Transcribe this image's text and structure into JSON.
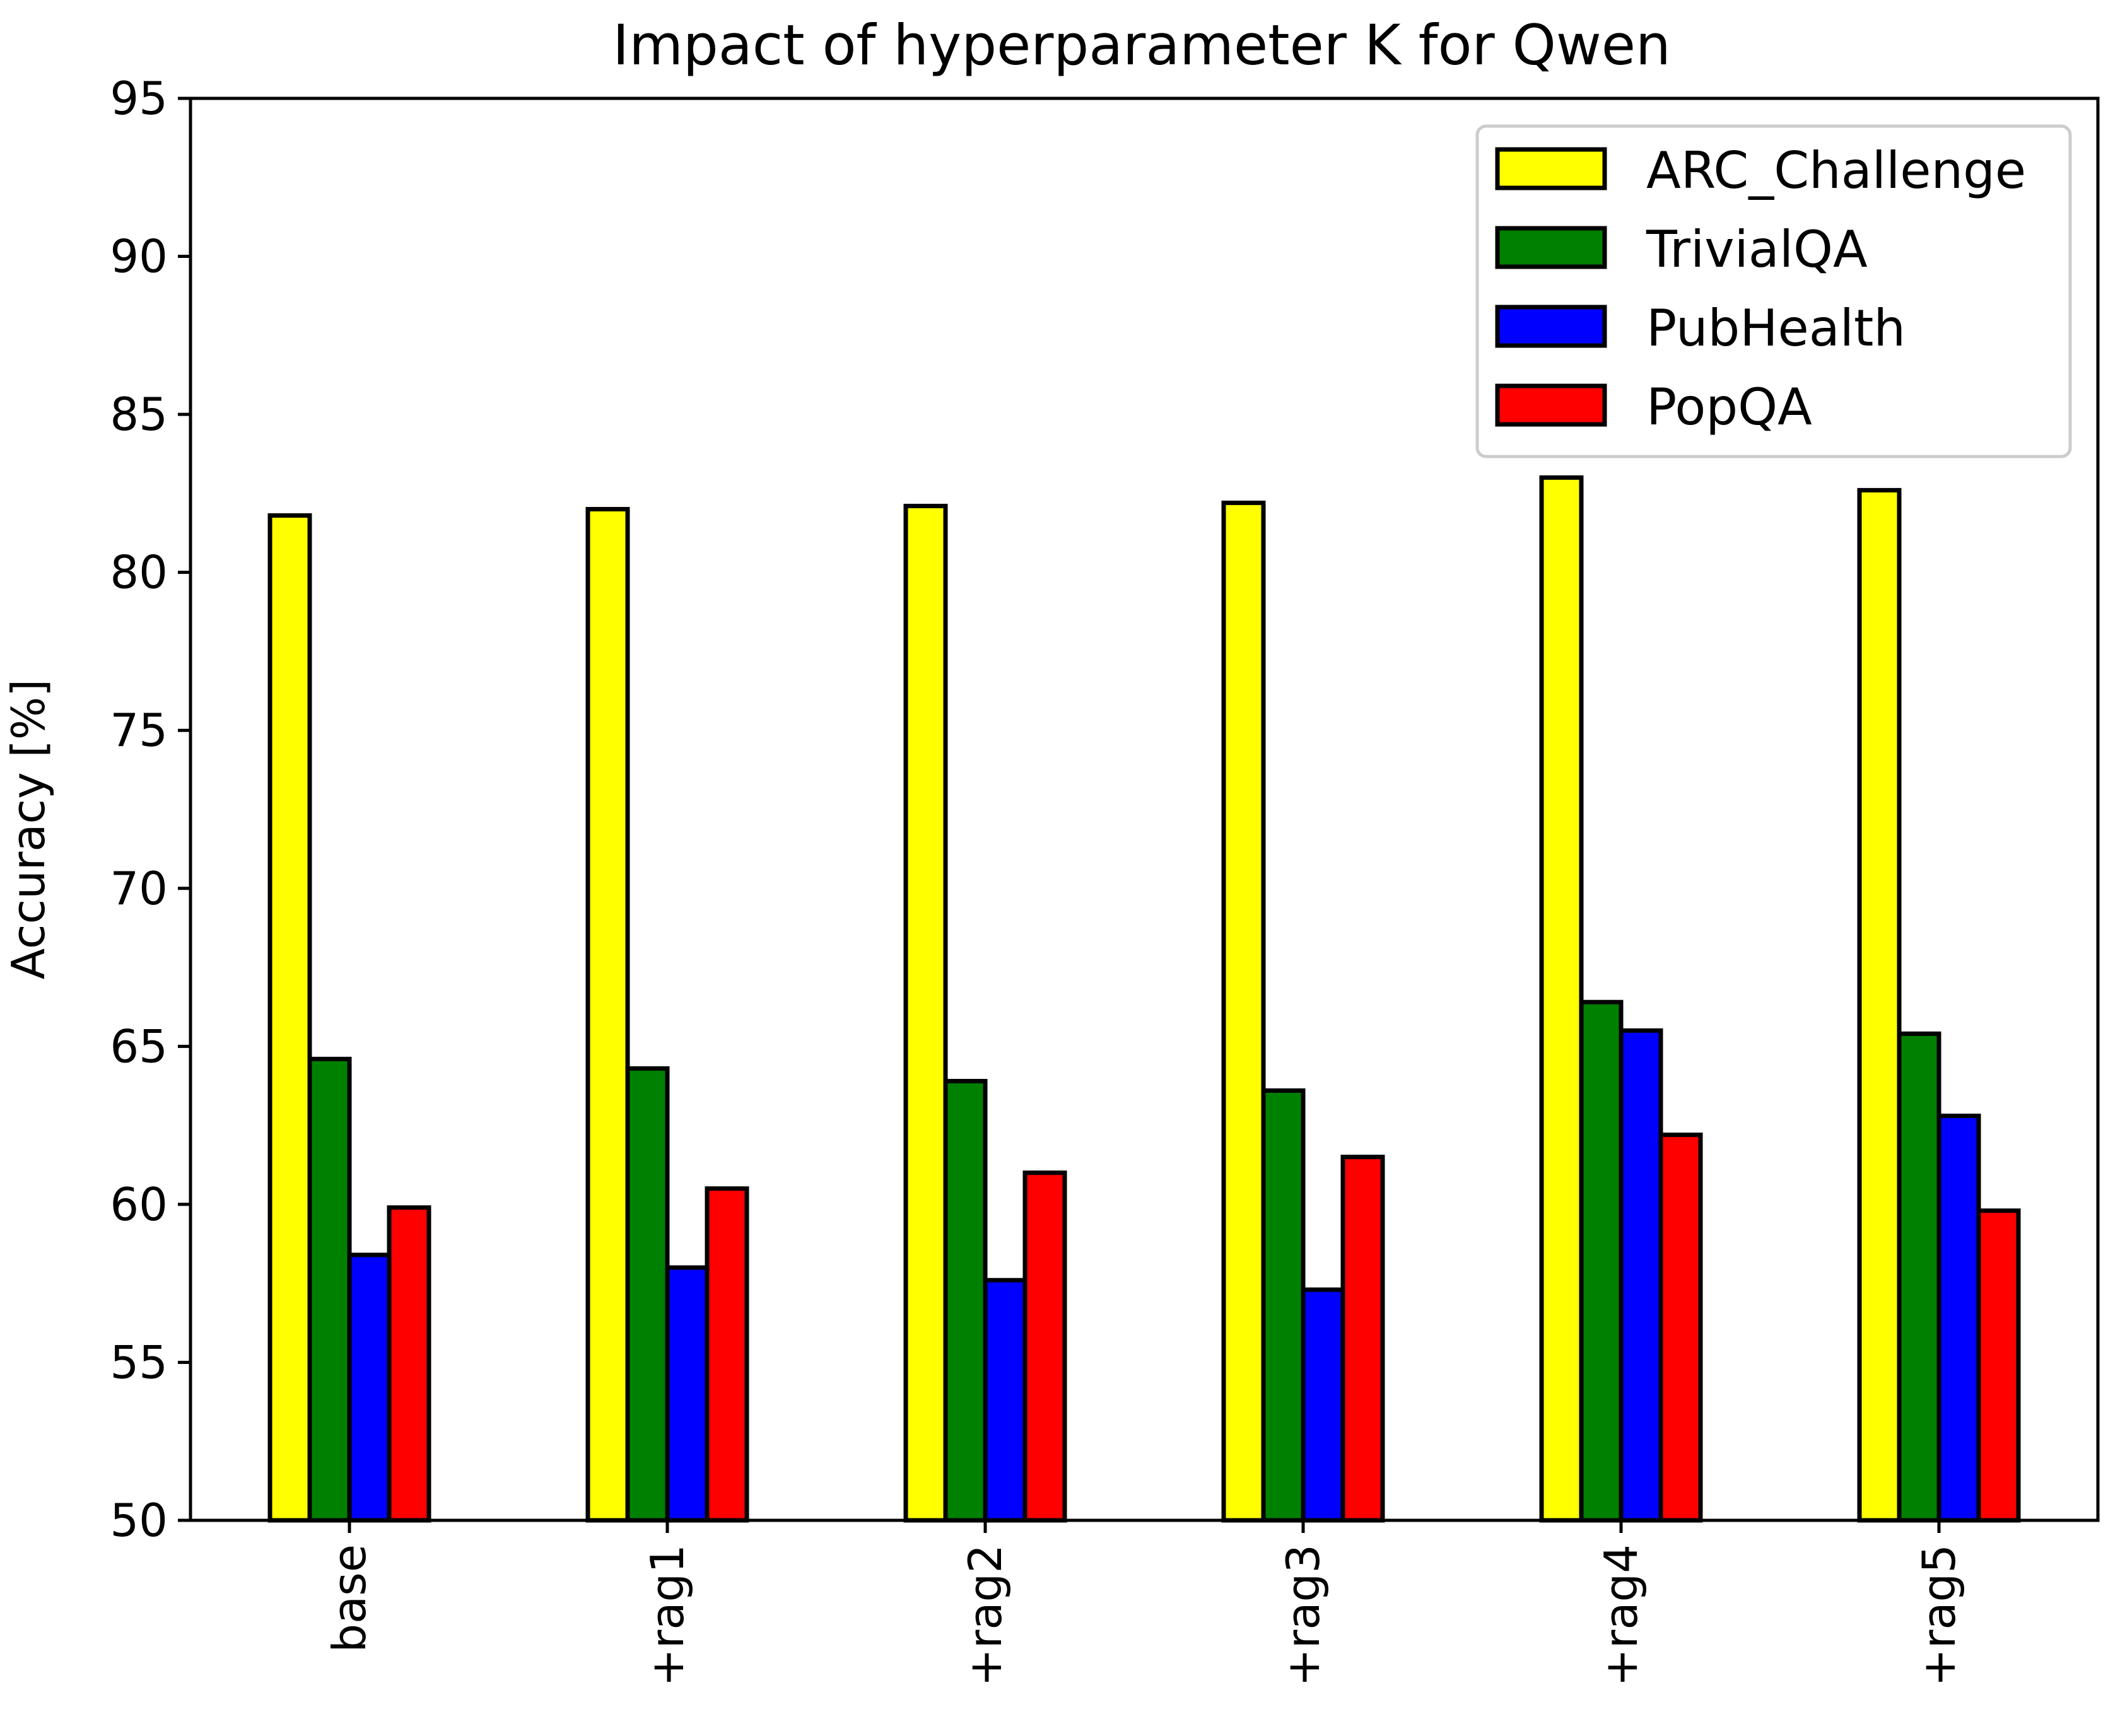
{
  "chart_data": {
    "type": "bar",
    "title": "Impact of hyperparameter K for Qwen",
    "xlabel": "",
    "ylabel": "Accuracy [%]",
    "ylim": [
      50,
      95
    ],
    "yticks": [
      50,
      55,
      60,
      65,
      70,
      75,
      80,
      85,
      90,
      95
    ],
    "categories": [
      "base",
      "+rag1",
      "+rag2",
      "+rag3",
      "+rag4",
      "+rag5"
    ],
    "series": [
      {
        "name": "ARC_Challenge",
        "color": "#ffff00",
        "values": [
          81.8,
          82.0,
          82.1,
          82.2,
          83.0,
          82.6
        ]
      },
      {
        "name": "TrivialQA",
        "color": "#008000",
        "values": [
          64.6,
          64.3,
          63.9,
          63.6,
          66.4,
          65.4
        ]
      },
      {
        "name": "PubHealth",
        "color": "#0000ff",
        "values": [
          58.4,
          58.0,
          57.6,
          57.3,
          65.5,
          62.8
        ]
      },
      {
        "name": "PopQA",
        "color": "#ff0000",
        "values": [
          59.9,
          60.5,
          61.0,
          61.5,
          62.2,
          59.8
        ]
      }
    ],
    "grid": false,
    "legend_position": "top-right"
  }
}
